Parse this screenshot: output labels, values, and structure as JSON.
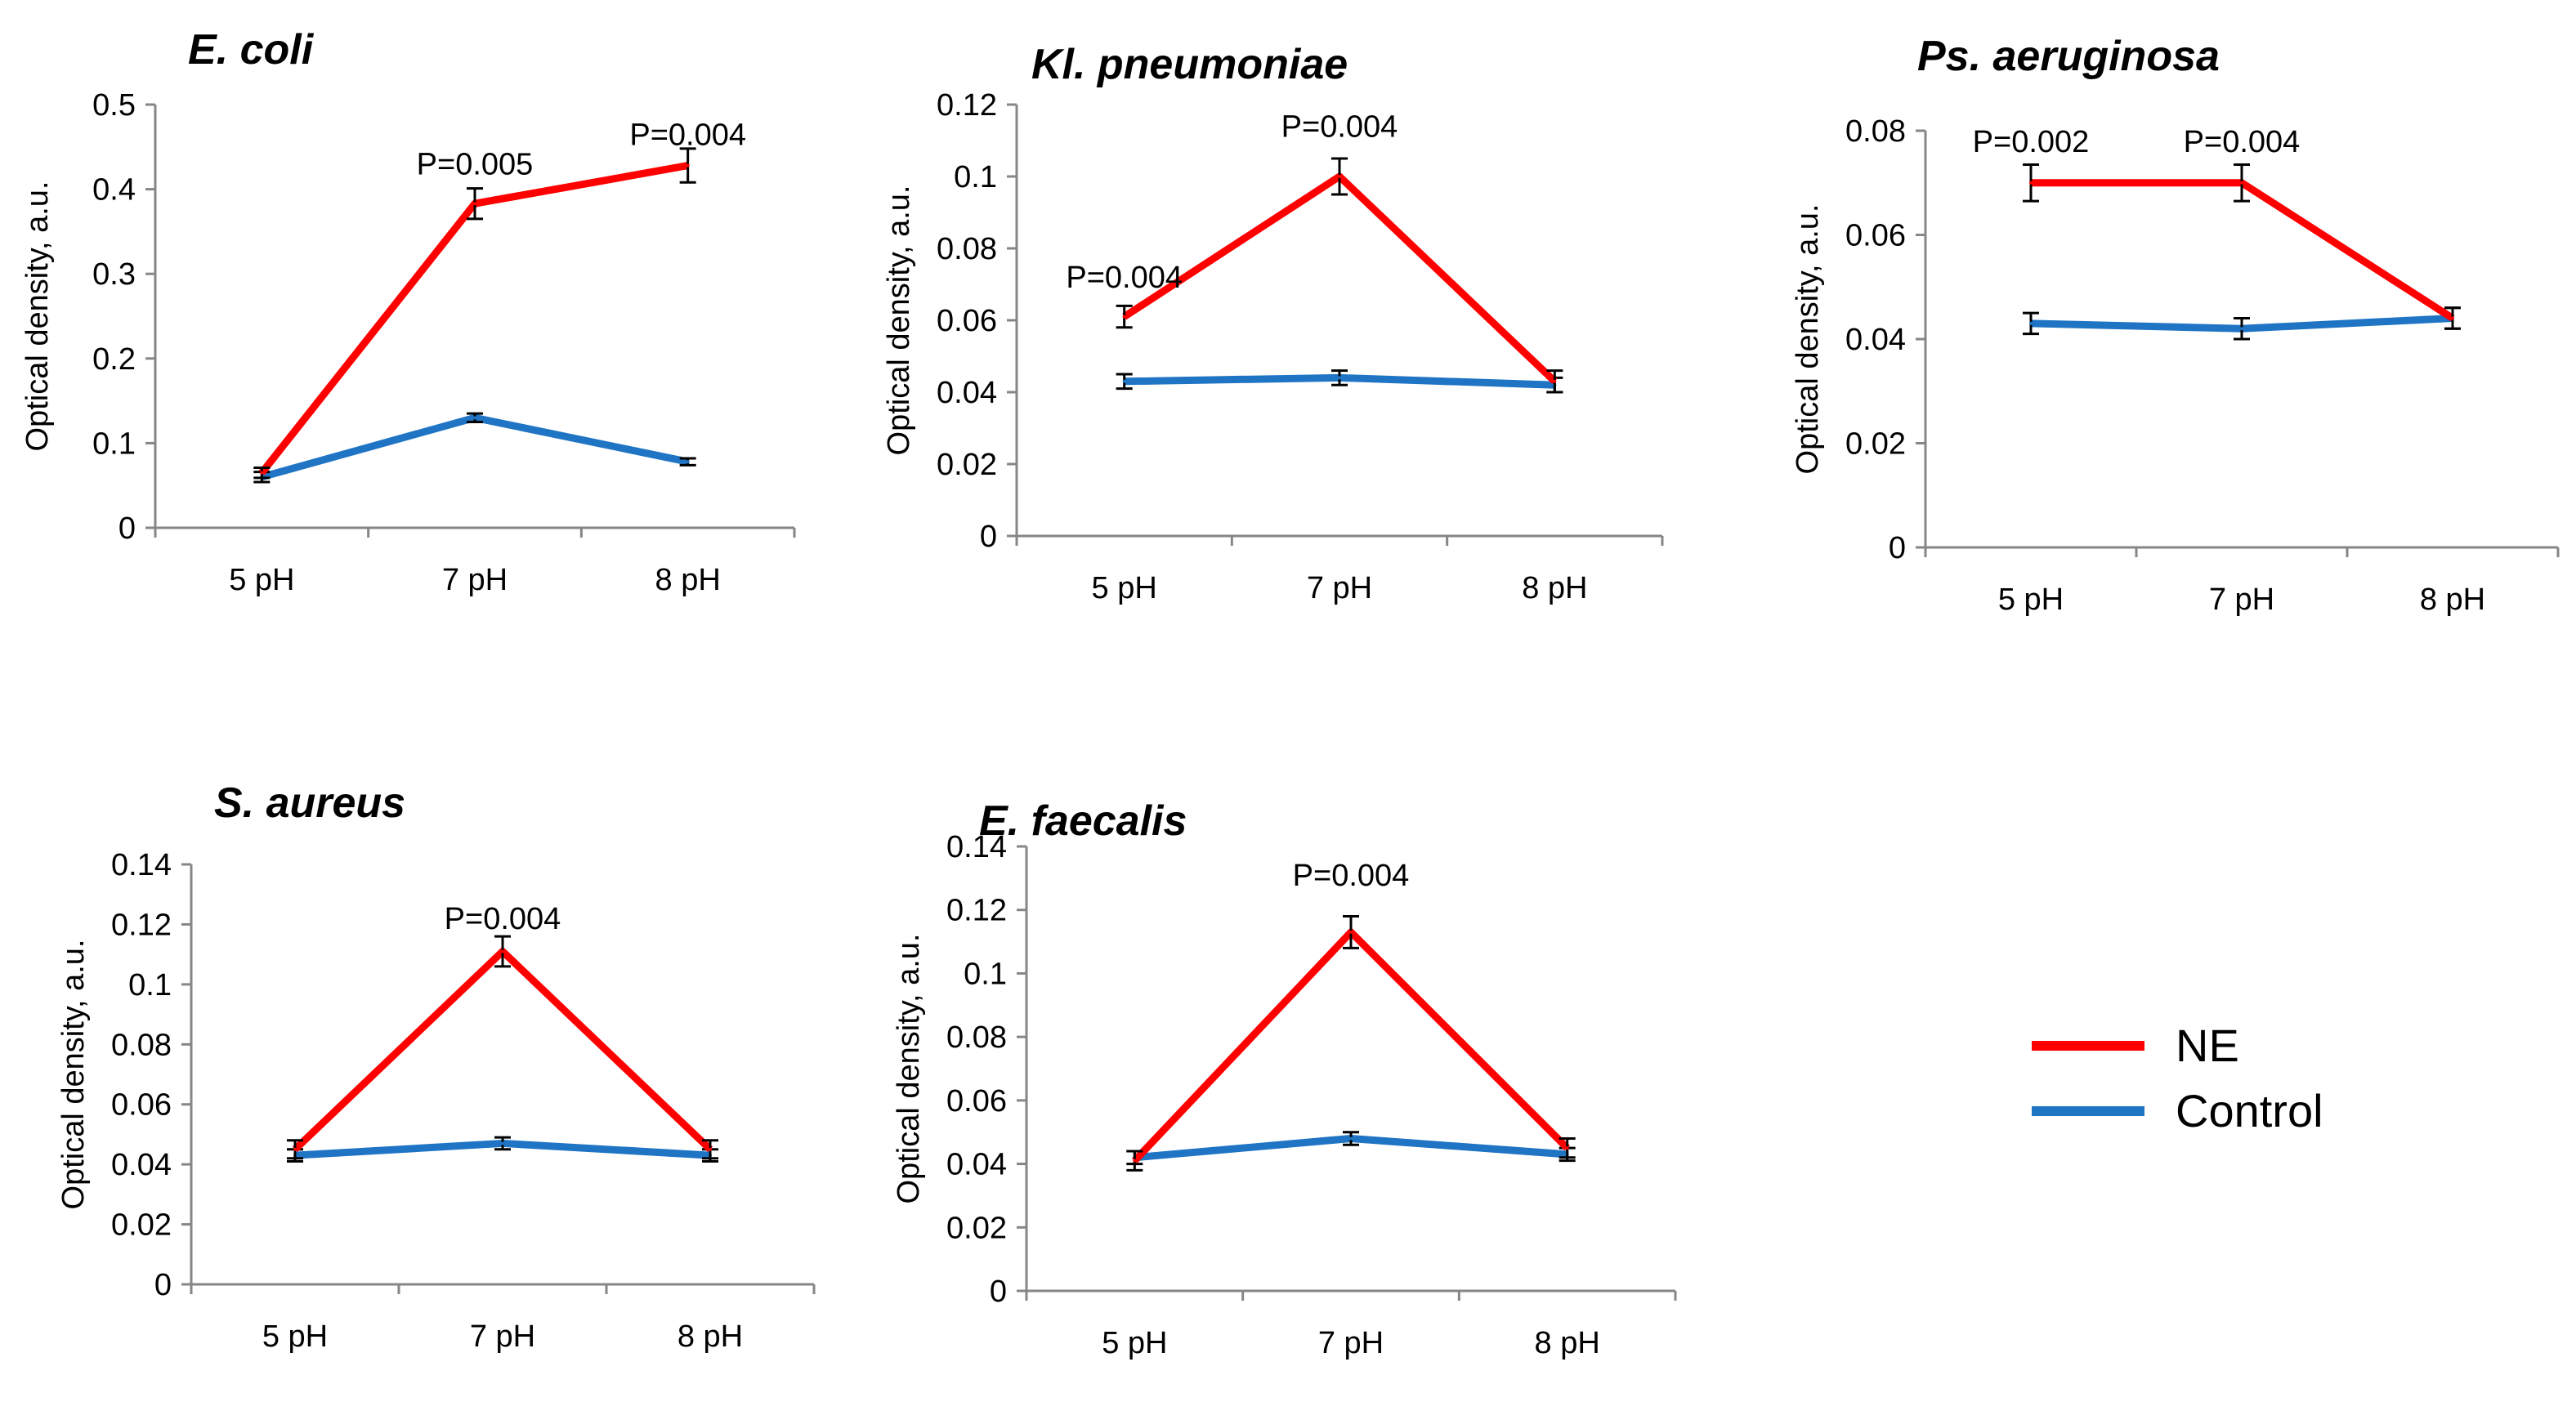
{
  "colors": {
    "ne": "#ff0000",
    "control": "#1f74c4",
    "axis": "#868686",
    "text": "#000000"
  },
  "legend": {
    "ne_label": "NE",
    "control_label": "Control"
  },
  "chart_data": [
    {
      "type": "line",
      "title": "E. coli",
      "ylabel": "Optical density, a.u.",
      "categories": [
        "5 pH",
        "7 pH",
        "8 pH"
      ],
      "ylim": [
        0,
        0.5
      ],
      "yticks": [
        0,
        0.1,
        0.2,
        0.3,
        0.4,
        0.5
      ],
      "ytick_labels": [
        "0",
        "0.1",
        "0.2",
        "0.3",
        "0.4",
        "0.5"
      ],
      "series": [
        {
          "name": "NE",
          "values": [
            0.065,
            0.383,
            0.428
          ],
          "errors": [
            0.006,
            0.018,
            0.02
          ]
        },
        {
          "name": "Control",
          "values": [
            0.06,
            0.13,
            0.078
          ],
          "errors": [
            0.006,
            0.005,
            0.004
          ]
        }
      ],
      "annotations": [
        {
          "text": "P=0.005",
          "x": "7 pH",
          "y": 0.43
        },
        {
          "text": "P=0.004",
          "x": "8 pH",
          "y": 0.465
        }
      ]
    },
    {
      "type": "line",
      "title": "Kl. pneumoniae",
      "ylabel": "Optical density, a.u.",
      "categories": [
        "5 pH",
        "7 pH",
        "8 pH"
      ],
      "ylim": [
        0,
        0.12
      ],
      "yticks": [
        0,
        0.02,
        0.04,
        0.06,
        0.08,
        0.1,
        0.12
      ],
      "ytick_labels": [
        "0",
        "0.02",
        "0.04",
        "0.06",
        "0.08",
        "0.1",
        "0.12"
      ],
      "series": [
        {
          "name": "NE",
          "values": [
            0.061,
            0.1,
            0.043
          ],
          "errors": [
            0.003,
            0.005,
            0.003
          ]
        },
        {
          "name": "Control",
          "values": [
            0.043,
            0.044,
            0.042
          ],
          "errors": [
            0.002,
            0.002,
            0.002
          ]
        }
      ],
      "annotations": [
        {
          "text": "P=0.004",
          "x": "5 pH",
          "y": 0.072
        },
        {
          "text": "P=0.004",
          "x": "7 pH",
          "y": 0.114
        }
      ]
    },
    {
      "type": "line",
      "title": "Ps. aeruginosa",
      "ylabel": "Optical density, a.u.",
      "categories": [
        "5 pH",
        "7 pH",
        "8 pH"
      ],
      "ylim": [
        0,
        0.08
      ],
      "yticks": [
        0,
        0.02,
        0.04,
        0.06,
        0.08
      ],
      "ytick_labels": [
        "0",
        "0.02",
        "0.04",
        "0.06",
        "0.08"
      ],
      "series": [
        {
          "name": "NE",
          "values": [
            0.07,
            0.07,
            0.044
          ],
          "errors": [
            0.0035,
            0.0035,
            0.002
          ]
        },
        {
          "name": "Control",
          "values": [
            0.043,
            0.042,
            0.044
          ],
          "errors": [
            0.002,
            0.002,
            0.002
          ]
        }
      ],
      "annotations": [
        {
          "text": "P=0.002",
          "x": "5 pH",
          "y": 0.078
        },
        {
          "text": "P=0.004",
          "x": "7 pH",
          "y": 0.078
        }
      ]
    },
    {
      "type": "line",
      "title": "S. aureus",
      "ylabel": "Optical density, a.u.",
      "categories": [
        "5 pH",
        "7 pH",
        "8 pH"
      ],
      "ylim": [
        0,
        0.14
      ],
      "yticks": [
        0,
        0.02,
        0.04,
        0.06,
        0.08,
        0.1,
        0.12,
        0.14
      ],
      "ytick_labels": [
        "0",
        "0.02",
        "0.04",
        "0.06",
        "0.08",
        "0.1",
        "0.12",
        "0.14"
      ],
      "series": [
        {
          "name": "NE",
          "values": [
            0.045,
            0.111,
            0.045
          ],
          "errors": [
            0.003,
            0.005,
            0.003
          ]
        },
        {
          "name": "Control",
          "values": [
            0.043,
            0.047,
            0.043
          ],
          "errors": [
            0.002,
            0.002,
            0.002
          ]
        }
      ],
      "annotations": [
        {
          "text": "P=0.004",
          "x": "7 pH",
          "y": 0.122
        }
      ]
    },
    {
      "type": "line",
      "title": "E. faecalis",
      "ylabel": "Optical density, a.u.",
      "categories": [
        "5 pH",
        "7 pH",
        "8 pH"
      ],
      "ylim": [
        0,
        0.14
      ],
      "yticks": [
        0,
        0.02,
        0.04,
        0.06,
        0.08,
        0.1,
        0.12,
        0.14
      ],
      "ytick_labels": [
        "0",
        "0.02",
        "0.04",
        "0.06",
        "0.08",
        "0.1",
        "0.12",
        "0.14"
      ],
      "series": [
        {
          "name": "NE",
          "values": [
            0.041,
            0.113,
            0.045
          ],
          "errors": [
            0.003,
            0.005,
            0.003
          ]
        },
        {
          "name": "Control",
          "values": [
            0.042,
            0.048,
            0.043
          ],
          "errors": [
            0.002,
            0.002,
            0.002
          ]
        }
      ],
      "annotations": [
        {
          "text": "P=0.004",
          "x": "7 pH",
          "y": 0.131
        }
      ]
    }
  ]
}
